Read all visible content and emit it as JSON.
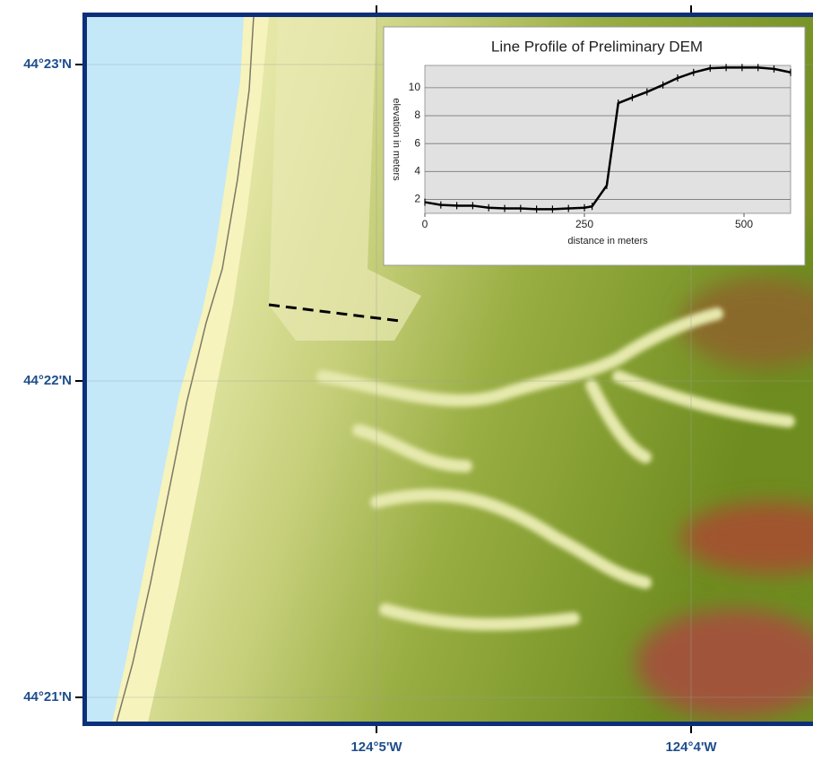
{
  "map": {
    "lat_labels": [
      "44°23'N",
      "44°22'N",
      "44°21'N"
    ],
    "lon_labels": [
      "124°5'W",
      "124°4'W"
    ]
  },
  "chart_data": {
    "type": "line",
    "title": "Line Profile of Preliminary DEM",
    "xlabel": "distance in meters",
    "ylabel": "elevation in meters",
    "x": [
      0,
      25,
      50,
      75,
      100,
      125,
      150,
      175,
      200,
      225,
      250,
      262,
      285,
      303,
      325,
      348,
      373,
      396,
      421,
      447,
      472,
      497,
      522,
      547,
      573
    ],
    "series": [
      {
        "name": "elevation",
        "color": "#000000",
        "values": [
          1.8,
          1.6,
          1.55,
          1.55,
          1.4,
          1.35,
          1.35,
          1.3,
          1.3,
          1.35,
          1.4,
          1.5,
          3.0,
          8.9,
          9.3,
          9.7,
          10.2,
          10.7,
          11.1,
          11.4,
          11.45,
          11.45,
          11.45,
          11.35,
          11.1
        ]
      }
    ],
    "xlim": [
      0,
      573
    ],
    "ylim": [
      1,
      11.6
    ],
    "xticks": [
      0,
      250,
      500
    ],
    "yticks": [
      2,
      4,
      6,
      8,
      10
    ],
    "grid": true
  }
}
